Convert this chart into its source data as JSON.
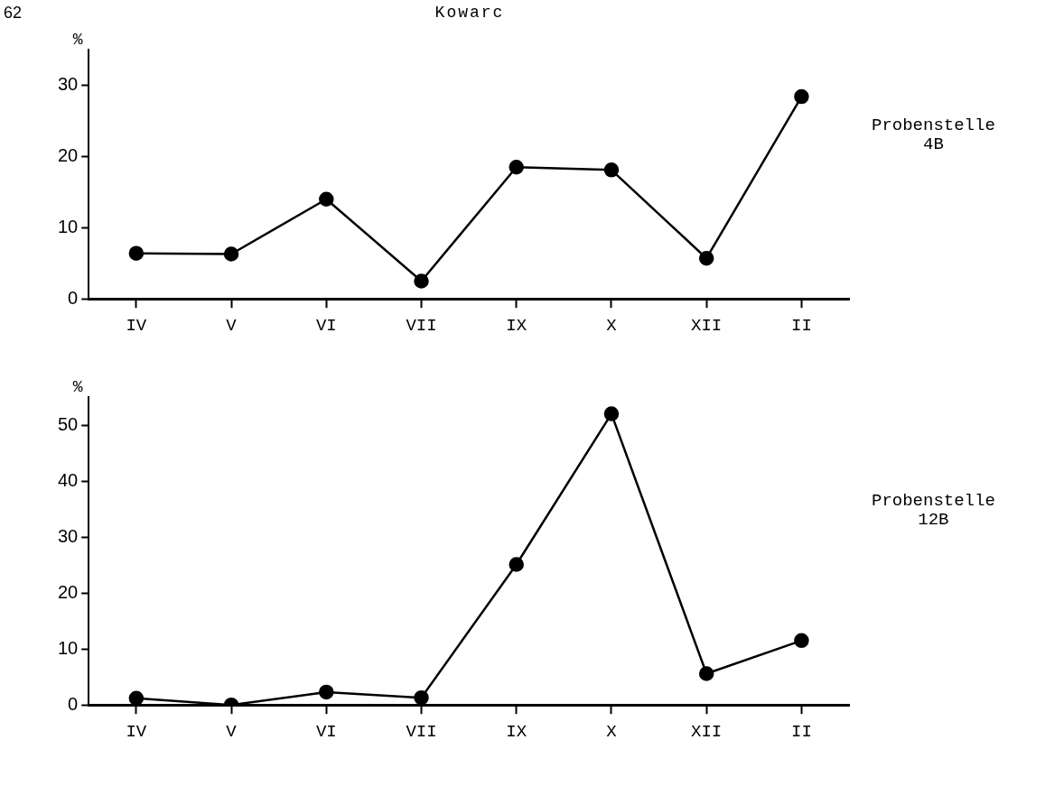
{
  "chart_data": [
    {
      "type": "line",
      "title": "Kowarc",
      "ylabel": "%",
      "annotations": [
        "62"
      ],
      "categories": [
        "IV",
        "V",
        "VI",
        "VII",
        "IX",
        "X",
        "XII",
        "II"
      ],
      "series": [
        {
          "name": "Probenstelle\n4B",
          "color": "#000000",
          "values": [
            6.4,
            6.3,
            14.0,
            2.5,
            18.5,
            18.1,
            5.7,
            28.4
          ]
        }
      ],
      "ylim": [
        0,
        35
      ],
      "yticks": [
        0,
        10,
        20,
        30
      ],
      "grid": false,
      "legend": "right",
      "marker": "circle",
      "line_style": "solid"
    },
    {
      "type": "line",
      "ylabel": "%",
      "categories": [
        "IV",
        "V",
        "VI",
        "VII",
        "IX",
        "X",
        "XII",
        "II"
      ],
      "series": [
        {
          "name": "Probenstelle\n12B",
          "color": "#000000",
          "values": [
            1.2,
            0,
            2.3,
            1.3,
            25.1,
            52,
            5.6,
            11.5
          ]
        }
      ],
      "ylim": [
        0,
        55
      ],
      "yticks": [
        0,
        10,
        20,
        30,
        40,
        50
      ],
      "grid": false,
      "legend": "right",
      "marker": "circle",
      "line_style": "solid"
    }
  ]
}
